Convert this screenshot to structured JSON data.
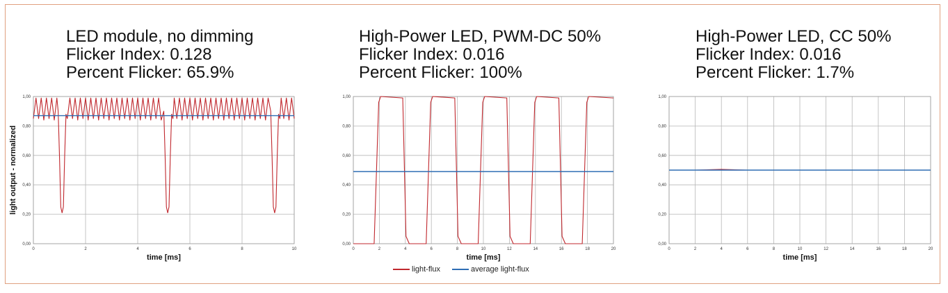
{
  "chart_data": [
    {
      "type": "line",
      "title": [
        "LED module, no dimming",
        "Flicker Index: 0.128",
        "Percent Flicker: 65.9%"
      ],
      "xlabel": "time [ms]",
      "ylabel": "light output - normalized",
      "xlim": [
        0,
        10
      ],
      "ylim": [
        0,
        1
      ],
      "x_ticks": [
        "0",
        "2",
        "4",
        "6",
        "8",
        "10"
      ],
      "y_ticks": [
        "0,00",
        "0,20",
        "0,40",
        "0,60",
        "0,80",
        "1,00"
      ],
      "grid": true,
      "series": [
        {
          "name": "light-flux",
          "color": "#c0272d",
          "x": [
            0,
            0.1,
            0.2,
            0.3,
            0.4,
            0.5,
            0.6,
            0.7,
            0.8,
            0.9,
            0.95,
            1.0,
            1.05,
            1.1,
            1.15,
            1.2,
            1.25,
            1.3,
            1.4,
            1.5,
            1.6,
            1.7,
            1.8,
            1.9,
            2.0,
            2.1,
            2.2,
            2.3,
            2.4,
            2.5,
            2.6,
            2.7,
            2.8,
            2.9,
            3.0,
            3.1,
            3.2,
            3.3,
            3.4,
            3.5,
            3.6,
            3.7,
            3.8,
            3.9,
            4.0,
            4.1,
            4.2,
            4.3,
            4.4,
            4.5,
            4.6,
            4.7,
            4.8,
            4.9,
            5.0,
            5.05,
            5.1,
            5.15,
            5.2,
            5.25,
            5.3,
            5.35,
            5.4,
            5.5,
            5.6,
            5.7,
            5.8,
            5.9,
            6.0,
            6.1,
            6.2,
            6.3,
            6.4,
            6.5,
            6.6,
            6.7,
            6.8,
            6.9,
            7.0,
            7.1,
            7.2,
            7.3,
            7.4,
            7.5,
            7.6,
            7.7,
            7.8,
            7.9,
            8.0,
            8.1,
            8.2,
            8.3,
            8.4,
            8.5,
            8.6,
            8.7,
            8.8,
            8.9,
            9.0,
            9.1,
            9.15,
            9.2,
            9.25,
            9.3,
            9.35,
            9.4,
            9.45,
            9.5,
            9.6,
            9.7,
            9.8,
            9.9,
            10.0
          ],
          "y": [
            0.85,
            0.99,
            0.85,
            0.99,
            0.84,
            0.99,
            0.85,
            0.99,
            0.84,
            0.99,
            0.9,
            0.6,
            0.25,
            0.21,
            0.25,
            0.6,
            0.88,
            0.85,
            0.99,
            0.85,
            0.99,
            0.84,
            0.99,
            0.85,
            0.99,
            0.84,
            0.99,
            0.85,
            0.99,
            0.84,
            0.99,
            0.85,
            0.99,
            0.84,
            0.99,
            0.85,
            0.99,
            0.84,
            0.99,
            0.85,
            0.99,
            0.84,
            0.99,
            0.85,
            0.99,
            0.84,
            0.99,
            0.85,
            0.99,
            0.84,
            0.99,
            0.85,
            0.99,
            0.84,
            0.9,
            0.6,
            0.25,
            0.21,
            0.25,
            0.6,
            0.88,
            0.85,
            0.99,
            0.85,
            0.99,
            0.84,
            0.99,
            0.85,
            0.99,
            0.84,
            0.99,
            0.85,
            0.99,
            0.84,
            0.99,
            0.85,
            0.99,
            0.84,
            0.99,
            0.85,
            0.99,
            0.84,
            0.99,
            0.85,
            0.99,
            0.84,
            0.99,
            0.85,
            0.99,
            0.84,
            0.99,
            0.85,
            0.99,
            0.84,
            0.99,
            0.85,
            0.99,
            0.84,
            0.99,
            0.9,
            0.6,
            0.25,
            0.21,
            0.25,
            0.6,
            0.88,
            0.85,
            0.99,
            0.85,
            0.99,
            0.84,
            0.99,
            0.85
          ]
        },
        {
          "name": "average light-flux",
          "color": "#2e6db4",
          "x": [
            0,
            10
          ],
          "y": [
            0.87,
            0.87
          ]
        }
      ]
    },
    {
      "type": "line",
      "title": [
        "High-Power LED, PWM-DC 50%",
        "Flicker Index: 0.016",
        "Percent Flicker: 100%"
      ],
      "xlabel": "time [ms]",
      "ylabel": "",
      "xlim": [
        0,
        20
      ],
      "ylim": [
        0,
        1
      ],
      "x_ticks": [
        "0",
        "2",
        "4",
        "6",
        "8",
        "10",
        "12",
        "14",
        "16",
        "18",
        "20"
      ],
      "y_ticks": [
        "0,00",
        "0,20",
        "0,40",
        "0,60",
        "0,80",
        "1,00"
      ],
      "grid": true,
      "series": [
        {
          "name": "light-flux",
          "color": "#c0272d",
          "x": [
            0,
            1.6,
            1.95,
            2.1,
            3.8,
            4.05,
            4.3,
            5.6,
            5.95,
            6.1,
            7.8,
            8.05,
            8.3,
            9.6,
            9.95,
            10.1,
            11.8,
            12.05,
            12.3,
            13.6,
            13.95,
            14.1,
            15.8,
            16.05,
            16.3,
            17.6,
            17.95,
            18.1,
            20
          ],
          "y": [
            0.0,
            0.0,
            0.96,
            1.0,
            0.99,
            0.05,
            0.0,
            0.0,
            0.96,
            1.0,
            0.99,
            0.05,
            0.0,
            0.0,
            0.96,
            1.0,
            0.99,
            0.05,
            0.0,
            0.0,
            0.96,
            1.0,
            0.99,
            0.05,
            0.0,
            0.0,
            0.96,
            1.0,
            0.99
          ]
        },
        {
          "name": "average light-flux",
          "color": "#2e6db4",
          "x": [
            0,
            20
          ],
          "y": [
            0.49,
            0.49
          ]
        }
      ]
    },
    {
      "type": "line",
      "title": [
        "High-Power LED, CC 50%",
        "Flicker Index: 0.016",
        "Percent Flicker: 1.7%"
      ],
      "xlabel": "time [ms]",
      "ylabel": "",
      "xlim": [
        0,
        20
      ],
      "ylim": [
        0,
        1
      ],
      "x_ticks": [
        "0",
        "2",
        "4",
        "6",
        "8",
        "10",
        "12",
        "14",
        "16",
        "18",
        "20"
      ],
      "y_ticks": [
        "0,00",
        "0,20",
        "0,40",
        "0,60",
        "0,80",
        "1,00"
      ],
      "grid": true,
      "series": [
        {
          "name": "light-flux",
          "color": "#c0272d",
          "x": [
            0,
            2,
            4,
            6,
            8,
            10,
            12,
            14,
            16,
            18,
            20
          ],
          "y": [
            0.5,
            0.5,
            0.505,
            0.5,
            0.5,
            0.5,
            0.5,
            0.5,
            0.5,
            0.5,
            0.5
          ]
        },
        {
          "name": "average light-flux",
          "color": "#2e6db4",
          "x": [
            0,
            20
          ],
          "y": [
            0.5,
            0.5
          ]
        }
      ]
    }
  ],
  "legend": {
    "items": [
      {
        "label": "light-flux",
        "color": "#c0272d"
      },
      {
        "label": "average light-flux",
        "color": "#2e6db4"
      }
    ]
  }
}
